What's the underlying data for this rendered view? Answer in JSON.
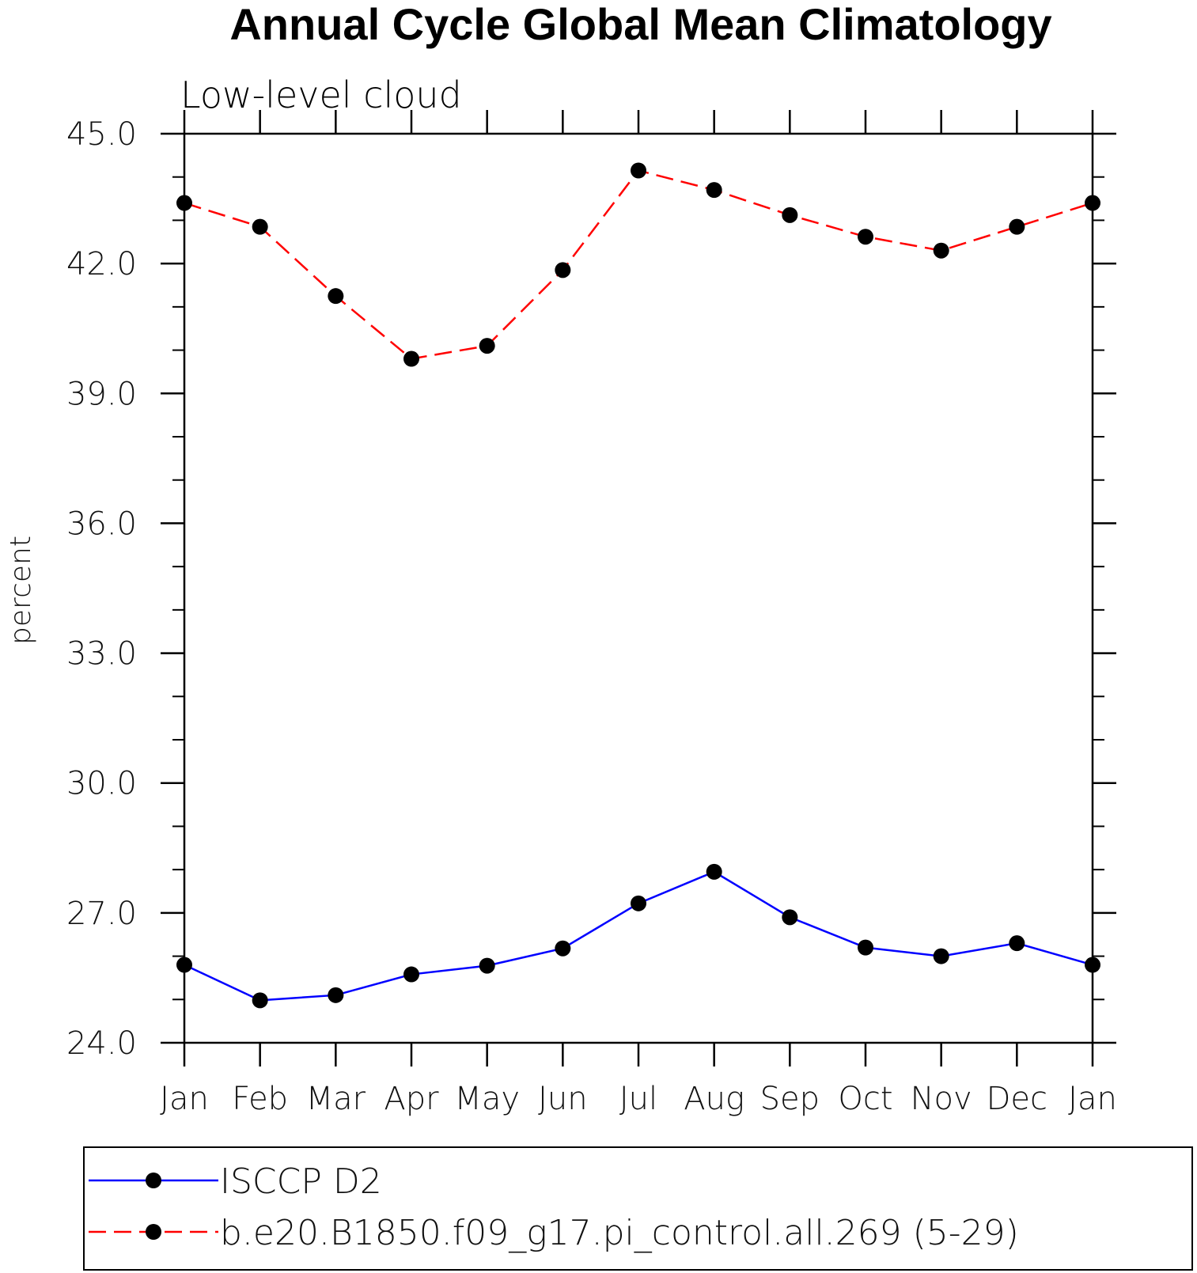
{
  "chart_data": {
    "type": "line",
    "title": "Annual Cycle Global Mean Climatology",
    "subtitle": "Low-level cloud",
    "xlabel": "",
    "ylabel": "percent",
    "categories": [
      "Jan",
      "Feb",
      "Mar",
      "Apr",
      "May",
      "Jun",
      "Jul",
      "Aug",
      "Sep",
      "Oct",
      "Nov",
      "Dec",
      "Jan"
    ],
    "ylim": [
      24.0,
      45.0
    ],
    "yticks": [
      "24.0",
      "27.0",
      "30.0",
      "33.0",
      "36.0",
      "39.0",
      "42.0",
      "45.0"
    ],
    "grid": false,
    "legend_position": "bottom",
    "series": [
      {
        "name": "ISCCP D2",
        "color": "#0000ff",
        "line_style": "solid",
        "marker": "filled-circle",
        "values": [
          25.8,
          24.98,
          25.1,
          25.58,
          25.78,
          26.18,
          27.22,
          27.95,
          26.9,
          26.2,
          26.0,
          26.3,
          25.8
        ]
      },
      {
        "name": "b.e20.B1850.f09_g17.pi_control.all.269 (5-29)",
        "color": "#ff0000",
        "line_style": "dashed",
        "marker": "filled-circle",
        "values": [
          43.4,
          42.85,
          41.25,
          39.8,
          40.1,
          41.85,
          44.15,
          43.7,
          43.12,
          42.62,
          42.3,
          42.85,
          43.4
        ]
      }
    ]
  }
}
